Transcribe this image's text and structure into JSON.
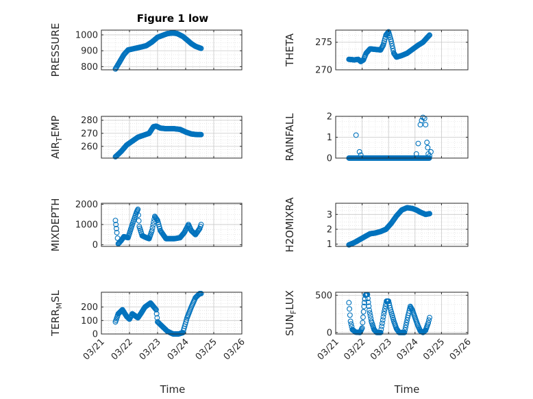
{
  "figure": {
    "title": "Figure 1 low",
    "marker_color": "#0072BD",
    "x_tick_labels": [
      "03/21",
      "03/22",
      "03/23",
      "03/24",
      "03/25",
      "03/26"
    ],
    "x_label": "Time"
  },
  "chart_data": [
    {
      "type": "scatter",
      "ylabel": "PRESSURE",
      "ylabel_main": "PRESSURE",
      "ylabel_sub": "",
      "ylabel_rest": "",
      "xlim": [
        0,
        5
      ],
      "ylim": [
        780,
        1030
      ],
      "yticks": [
        800,
        900,
        1000
      ],
      "ytick_labels": [
        "800",
        "900",
        "1000"
      ],
      "show_xticklabels": false,
      "keys": [
        [
          0.5,
          785
        ],
        [
          0.65,
          830
        ],
        [
          0.8,
          875
        ],
        [
          0.95,
          905
        ],
        [
          1.2,
          915
        ],
        [
          1.45,
          925
        ],
        [
          1.6,
          932
        ],
        [
          1.8,
          955
        ],
        [
          2.0,
          985
        ],
        [
          2.2,
          998
        ],
        [
          2.35,
          1008
        ],
        [
          2.55,
          1012
        ],
        [
          2.7,
          1008
        ],
        [
          2.9,
          990
        ],
        [
          3.05,
          968
        ],
        [
          3.2,
          945
        ],
        [
          3.35,
          928
        ],
        [
          3.5,
          918
        ],
        [
          3.55,
          915
        ]
      ]
    },
    {
      "type": "scatter",
      "ylabel": "THETA",
      "ylabel_main": "THETA",
      "ylabel_sub": "",
      "ylabel_rest": "",
      "xlim": [
        0,
        5
      ],
      "ylim": [
        270,
        277.2
      ],
      "yticks": [
        270,
        275
      ],
      "ytick_labels": [
        "270",
        "275"
      ],
      "show_xticklabels": false,
      "keys": [
        [
          0.5,
          271.9
        ],
        [
          0.7,
          271.8
        ],
        [
          0.85,
          271.9
        ],
        [
          0.95,
          271.5
        ],
        [
          1.05,
          271.8
        ],
        [
          1.15,
          273.0
        ],
        [
          1.3,
          273.8
        ],
        [
          1.5,
          273.7
        ],
        [
          1.7,
          273.6
        ],
        [
          1.8,
          274.5
        ],
        [
          1.9,
          276.3
        ],
        [
          2.0,
          276.9
        ],
        [
          2.1,
          275.2
        ],
        [
          2.2,
          273.0
        ],
        [
          2.3,
          272.3
        ],
        [
          2.5,
          272.6
        ],
        [
          2.7,
          273.0
        ],
        [
          2.9,
          273.7
        ],
        [
          3.1,
          274.4
        ],
        [
          3.3,
          275.0
        ],
        [
          3.45,
          275.8
        ],
        [
          3.55,
          276.3
        ]
      ]
    },
    {
      "type": "scatter",
      "ylabel": "AIR_TEMP",
      "ylabel_main": "AIR",
      "ylabel_sub": "T",
      "ylabel_rest": "EMP",
      "xlim": [
        0,
        5
      ],
      "ylim": [
        251,
        283
      ],
      "yticks": [
        260,
        270,
        280
      ],
      "ytick_labels": [
        "260",
        "270",
        "280"
      ],
      "show_xticklabels": false,
      "keys": [
        [
          0.5,
          252
        ],
        [
          0.7,
          256
        ],
        [
          0.9,
          261
        ],
        [
          1.1,
          264
        ],
        [
          1.3,
          267
        ],
        [
          1.5,
          268.5
        ],
        [
          1.7,
          270
        ],
        [
          1.85,
          275
        ],
        [
          1.95,
          275.5
        ],
        [
          2.1,
          274
        ],
        [
          2.3,
          273.5
        ],
        [
          2.6,
          273.5
        ],
        [
          2.8,
          273
        ],
        [
          3.0,
          271
        ],
        [
          3.2,
          269.5
        ],
        [
          3.4,
          269
        ],
        [
          3.55,
          269
        ]
      ]
    },
    {
      "type": "scatter",
      "ylabel": "RAINFALL",
      "ylabel_main": "RAINFALL",
      "ylabel_sub": "",
      "ylabel_rest": "",
      "xlim": [
        0,
        5
      ],
      "ylim": [
        0,
        2
      ],
      "yticks": [
        0,
        1,
        2
      ],
      "ytick_labels": [
        "0",
        "1",
        "2"
      ],
      "show_xticklabels": false,
      "mode": "points",
      "zero_range": [
        0.5,
        3.55
      ],
      "points": [
        [
          0.77,
          1.1
        ],
        [
          0.9,
          0.3
        ],
        [
          0.95,
          0.15
        ],
        [
          3.05,
          0.2
        ],
        [
          3.12,
          0.7
        ],
        [
          3.2,
          1.6
        ],
        [
          3.25,
          1.8
        ],
        [
          3.3,
          1.95
        ],
        [
          3.36,
          1.9
        ],
        [
          3.4,
          1.6
        ],
        [
          3.45,
          0.75
        ],
        [
          3.48,
          0.5
        ],
        [
          3.5,
          0.2
        ],
        [
          3.55,
          0.1
        ],
        [
          3.6,
          0.3
        ]
      ]
    },
    {
      "type": "scatter",
      "ylabel": "MIXDEPTH",
      "ylabel_main": "MIXDEPTH",
      "ylabel_sub": "",
      "ylabel_rest": "",
      "xlim": [
        0,
        5
      ],
      "ylim": [
        -80,
        2050
      ],
      "yticks": [
        0,
        1000,
        2000
      ],
      "ytick_labels": [
        "0",
        "1000",
        "2000"
      ],
      "show_xticklabels": false,
      "keys": [
        [
          0.5,
          1200
        ],
        [
          0.55,
          600
        ],
        [
          0.6,
          50
        ],
        [
          0.7,
          200
        ],
        [
          0.8,
          400
        ],
        [
          0.95,
          350
        ],
        [
          1.1,
          1000
        ],
        [
          1.25,
          1600
        ],
        [
          1.3,
          1750
        ],
        [
          1.35,
          900
        ],
        [
          1.45,
          450
        ],
        [
          1.6,
          350
        ],
        [
          1.7,
          300
        ],
        [
          1.8,
          700
        ],
        [
          1.9,
          1400
        ],
        [
          2.0,
          1200
        ],
        [
          2.1,
          700
        ],
        [
          2.3,
          300
        ],
        [
          2.6,
          300
        ],
        [
          2.8,
          350
        ],
        [
          2.95,
          600
        ],
        [
          3.1,
          1000
        ],
        [
          3.2,
          700
        ],
        [
          3.35,
          500
        ],
        [
          3.5,
          800
        ],
        [
          3.55,
          1000
        ]
      ]
    },
    {
      "type": "scatter",
      "ylabel": "H2OMIXRA",
      "ylabel_main": "H2OMIXRA",
      "ylabel_sub": "",
      "ylabel_rest": "",
      "xlim": [
        0,
        5
      ],
      "ylim": [
        0.85,
        3.75
      ],
      "yticks": [
        1,
        2,
        3
      ],
      "ytick_labels": [
        "1",
        "2",
        "3"
      ],
      "show_xticklabels": false,
      "keys": [
        [
          0.5,
          0.95
        ],
        [
          0.7,
          1.1
        ],
        [
          0.9,
          1.3
        ],
        [
          1.1,
          1.5
        ],
        [
          1.3,
          1.7
        ],
        [
          1.5,
          1.75
        ],
        [
          1.7,
          1.85
        ],
        [
          1.9,
          2.0
        ],
        [
          2.1,
          2.4
        ],
        [
          2.3,
          2.9
        ],
        [
          2.5,
          3.3
        ],
        [
          2.7,
          3.45
        ],
        [
          2.9,
          3.4
        ],
        [
          3.05,
          3.3
        ],
        [
          3.2,
          3.15
        ],
        [
          3.4,
          3.0
        ],
        [
          3.55,
          3.05
        ]
      ]
    },
    {
      "type": "scatter",
      "ylabel": "TERR_MSL",
      "ylabel_main": "TERR",
      "ylabel_sub": "M",
      "ylabel_rest": "SL",
      "xlim": [
        0,
        5
      ],
      "ylim": [
        0,
        310
      ],
      "yticks": [
        0,
        100,
        200
      ],
      "ytick_labels": [
        "0",
        "100",
        "200"
      ],
      "show_xticklabels": true,
      "keys": [
        [
          0.5,
          90
        ],
        [
          0.6,
          150
        ],
        [
          0.75,
          180
        ],
        [
          0.9,
          130
        ],
        [
          1.0,
          110
        ],
        [
          1.1,
          150
        ],
        [
          1.3,
          120
        ],
        [
          1.4,
          150
        ],
        [
          1.55,
          200
        ],
        [
          1.75,
          230
        ],
        [
          1.95,
          180
        ],
        [
          2.0,
          90
        ],
        [
          2.15,
          60
        ],
        [
          2.35,
          20
        ],
        [
          2.55,
          0
        ],
        [
          2.75,
          0
        ],
        [
          2.9,
          10
        ],
        [
          3.05,
          120
        ],
        [
          3.2,
          200
        ],
        [
          3.35,
          270
        ],
        [
          3.5,
          300
        ],
        [
          3.55,
          300
        ]
      ]
    },
    {
      "type": "scatter",
      "ylabel": "SUN_FLUX",
      "ylabel_main": "SUN",
      "ylabel_sub": "F",
      "ylabel_rest": "LUX",
      "xlim": [
        0,
        5
      ],
      "ylim": [
        -20,
        540
      ],
      "yticks": [
        0,
        500
      ],
      "ytick_labels": [
        "0",
        "500"
      ],
      "show_xticklabels": true,
      "keys": [
        [
          0.5,
          400
        ],
        [
          0.56,
          150
        ],
        [
          0.63,
          40
        ],
        [
          0.75,
          5
        ],
        [
          0.92,
          0
        ],
        [
          1.0,
          60
        ],
        [
          1.07,
          350
        ],
        [
          1.12,
          500
        ],
        [
          1.2,
          510
        ],
        [
          1.27,
          300
        ],
        [
          1.35,
          150
        ],
        [
          1.45,
          40
        ],
        [
          1.55,
          0
        ],
        [
          1.7,
          0
        ],
        [
          1.82,
          250
        ],
        [
          1.92,
          420
        ],
        [
          2.0,
          420
        ],
        [
          2.08,
          300
        ],
        [
          2.2,
          150
        ],
        [
          2.3,
          50
        ],
        [
          2.4,
          0
        ],
        [
          2.6,
          0
        ],
        [
          2.72,
          200
        ],
        [
          2.82,
          350
        ],
        [
          2.9,
          300
        ],
        [
          3.0,
          200
        ],
        [
          3.1,
          100
        ],
        [
          3.2,
          20
        ],
        [
          3.3,
          0
        ],
        [
          3.4,
          30
        ],
        [
          3.5,
          130
        ],
        [
          3.55,
          200
        ]
      ]
    }
  ]
}
